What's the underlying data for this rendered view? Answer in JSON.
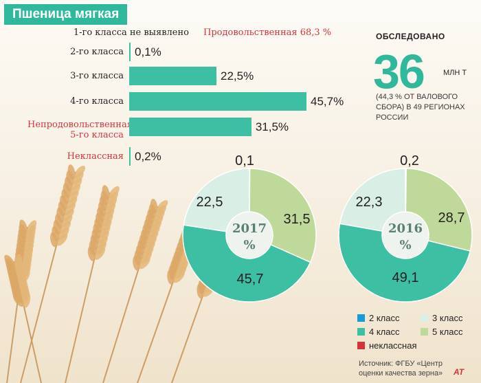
{
  "title": "Пшеница мягкая",
  "food_label": "Продовольственная 68,3 %",
  "survey": {
    "head": "ОБСЛЕДОВАНО",
    "number": "36",
    "unit": "МЛН Т",
    "note_lines": [
      "(44,3 % ОТ ВАЛОВОГО",
      "СБОРА) В 49 РЕГИОНАХ",
      "РОССИИ"
    ]
  },
  "chart_data": [
    {
      "type": "bar",
      "orientation": "horizontal",
      "categories": [
        "1-го класса не выявлено",
        "2-го класса",
        "3-го класса",
        "4-го класса",
        "Непродовольственная 5-го класса",
        "Неклассная"
      ],
      "category_lines": [
        [
          "1-го класса не выявлено"
        ],
        [
          "2-го класса"
        ],
        [
          "3-го класса"
        ],
        [
          "4-го класса"
        ],
        [
          "Непродовольственная",
          "5-го класса"
        ],
        [
          "Неклассная"
        ]
      ],
      "values": [
        null,
        0.1,
        22.5,
        45.7,
        31.5,
        0.2
      ],
      "value_labels": [
        "",
        "0,1%",
        "22,5%",
        "45,7%",
        "31,5%",
        "0,2%"
      ],
      "red_categories": [
        "Непродовольственная 5-го класса",
        "Неклассная"
      ]
    },
    {
      "type": "pie",
      "center_label": "2017 %",
      "center_lines": [
        "2017",
        "%"
      ],
      "slices": [
        {
          "name": "2 класс",
          "value": 0.1,
          "label": "0,1"
        },
        {
          "name": "5 класс",
          "value": 31.5,
          "label": "31,5"
        },
        {
          "name": "4 класс",
          "value": 45.7,
          "label": "45,7"
        },
        {
          "name": "3 класс",
          "value": 22.5,
          "label": "22,5"
        }
      ]
    },
    {
      "type": "pie",
      "center_label": "2016 %",
      "center_lines": [
        "2016",
        "%"
      ],
      "slices": [
        {
          "name": "неклассная",
          "value": 0.2,
          "label": "0,2"
        },
        {
          "name": "5 класс",
          "value": 28.7,
          "label": "28,7"
        },
        {
          "name": "4 класс",
          "value": 49.1,
          "label": "49,1"
        },
        {
          "name": "3 класс",
          "value": 22.3,
          "label": "22,3"
        }
      ]
    }
  ],
  "legend": [
    {
      "name": "2 класс",
      "color": "#1a9ad6"
    },
    {
      "name": "3 класс",
      "color": "#d9efe6"
    },
    {
      "name": "4 класс",
      "color": "#3cbfa3"
    },
    {
      "name": "5 класс",
      "color": "#bfd99a"
    },
    {
      "name": "неклассная",
      "color": "#d6333b"
    }
  ],
  "colors": {
    "2 класс": "#1a9ad6",
    "3 класс": "#d9efe6",
    "4 класс": "#3cbfa3",
    "5 класс": "#bfd99a",
    "неклассная": "#d6333b",
    "accent": "#2fb89c",
    "red": "#d6333b"
  },
  "source_lines": [
    "Источник: ФГБУ «Центр",
    "оценки качества зерна»"
  ],
  "logo": "AT"
}
